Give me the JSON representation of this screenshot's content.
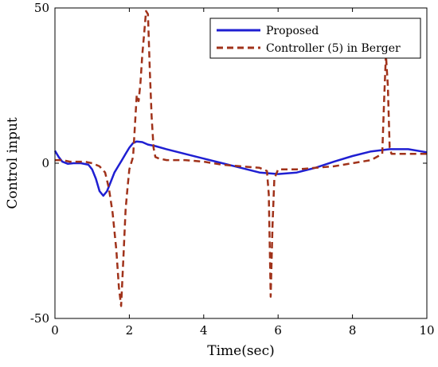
{
  "chart_data": {
    "type": "line",
    "title": "",
    "xlabel": "Time(sec)",
    "ylabel": "Control input",
    "xlim": [
      0,
      10
    ],
    "ylim": [
      -50,
      50
    ],
    "xticks": [
      "0",
      "2",
      "4",
      "6",
      "8",
      "10"
    ],
    "yticks": [
      "-50",
      "0",
      "50"
    ],
    "xtick_values": [
      0,
      2,
      4,
      6,
      8,
      10
    ],
    "ytick_values": [
      -50,
      0,
      50
    ],
    "grid": false,
    "legend_position": "top-right",
    "series": [
      {
        "name": "Proposed",
        "color": "#1f1fd2",
        "style": "solid",
        "x": [
          0,
          0.1,
          0.2,
          0.35,
          0.5,
          0.7,
          0.9,
          1.0,
          1.1,
          1.2,
          1.3,
          1.4,
          1.5,
          1.6,
          1.7,
          1.8,
          1.9,
          2.0,
          2.1,
          2.2,
          2.35,
          2.5,
          2.7,
          3.0,
          3.5,
          4.0,
          4.5,
          5.0,
          5.5,
          6.0,
          6.5,
          7.0,
          7.5,
          8.0,
          8.5,
          9.0,
          9.5,
          10.0
        ],
        "y": [
          4,
          2,
          0.5,
          -0.2,
          0,
          0,
          -0.5,
          -2,
          -5,
          -9,
          -10.5,
          -9,
          -6,
          -3,
          -1,
          1,
          3,
          5,
          6.5,
          7,
          6.8,
          6,
          5.5,
          4.5,
          3,
          1.5,
          0,
          -1.5,
          -3,
          -3.5,
          -3,
          -1.5,
          0.5,
          2.3,
          3.8,
          4.5,
          4.5,
          3.5
        ]
      },
      {
        "name": "Controller (5) in Berger",
        "color": "#a0321a",
        "style": "dashed",
        "x": [
          0,
          0.2,
          0.4,
          0.6,
          0.8,
          1.0,
          1.2,
          1.35,
          1.45,
          1.55,
          1.65,
          1.72,
          1.78,
          1.85,
          1.9,
          1.95,
          2.0,
          2.05,
          2.1,
          2.15,
          2.2,
          2.25,
          2.3,
          2.35,
          2.4,
          2.45,
          2.5,
          2.55,
          2.6,
          2.65,
          2.7,
          2.8,
          3.0,
          3.5,
          4.0,
          4.5,
          5.0,
          5.5,
          5.7,
          5.75,
          5.8,
          5.85,
          5.9,
          6.0,
          6.2,
          6.5,
          7.0,
          7.5,
          8.0,
          8.5,
          8.8,
          8.85,
          8.9,
          8.95,
          9.0,
          9.05,
          9.2,
          9.5,
          10.0
        ],
        "y": [
          1,
          1,
          0.5,
          0.5,
          0.5,
          0,
          -1,
          -3,
          -8,
          -16,
          -28,
          -40,
          -46,
          -28,
          -15,
          -8,
          -2,
          0,
          2,
          12,
          22,
          20,
          26,
          35,
          42,
          49,
          48,
          30,
          15,
          5,
          2,
          1.5,
          1,
          1,
          0.5,
          -0.5,
          -1,
          -1.5,
          -2.5,
          -10,
          -43,
          -20,
          -5,
          -2,
          -2,
          -2,
          -1.5,
          -1,
          0,
          1,
          3,
          20,
          35,
          25,
          5,
          3,
          3,
          3,
          3
        ]
      }
    ]
  }
}
